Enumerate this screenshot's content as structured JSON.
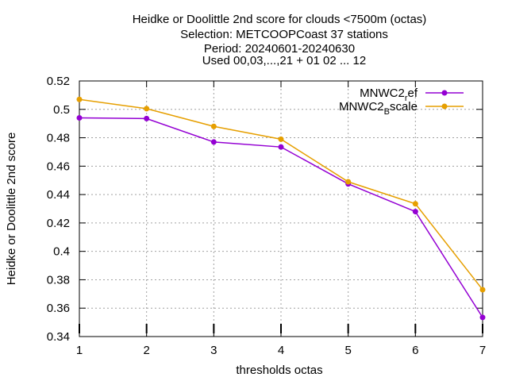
{
  "chart_data": {
    "type": "line",
    "title_lines": [
      "Heidke or Doolittle 2nd score  for clouds <7500m (octas)",
      "Selection: METCOOPCoast     37 stations",
      "Period: 20240601-20240630",
      "Used 00,03,...,21 + 01 02 ... 12"
    ],
    "xlabel": "thresholds octas",
    "ylabel": "Heidke or Doolittle 2nd score",
    "x": [
      1,
      2,
      3,
      4,
      5,
      6,
      7
    ],
    "xticks": [
      "1",
      "2",
      "3",
      "4",
      "5",
      "6",
      "7"
    ],
    "xlim": [
      1,
      7
    ],
    "ylim": [
      0.34,
      0.52
    ],
    "yticks": [
      "0.34",
      "0.36",
      "0.38",
      "0.4",
      "0.42",
      "0.44",
      "0.46",
      "0.48",
      "0.5",
      "0.52"
    ],
    "ytick_values": [
      0.34,
      0.36,
      0.38,
      0.4,
      0.42,
      0.44,
      0.46,
      0.48,
      0.5,
      0.52
    ],
    "grid": true,
    "legend_position": "top-right",
    "series": [
      {
        "name_main": "MNWC2",
        "name_sub": "r",
        "name_tail": "ef",
        "color": "#9400d3",
        "values": [
          0.494,
          0.4935,
          0.477,
          0.4735,
          0.4475,
          0.428,
          0.3535
        ]
      },
      {
        "name_main": "MNWC2",
        "name_sub": "B",
        "name_tail": "scale",
        "color": "#e69f00",
        "values": [
          0.507,
          0.5005,
          0.488,
          0.479,
          0.449,
          0.4335,
          0.373
        ]
      }
    ]
  }
}
